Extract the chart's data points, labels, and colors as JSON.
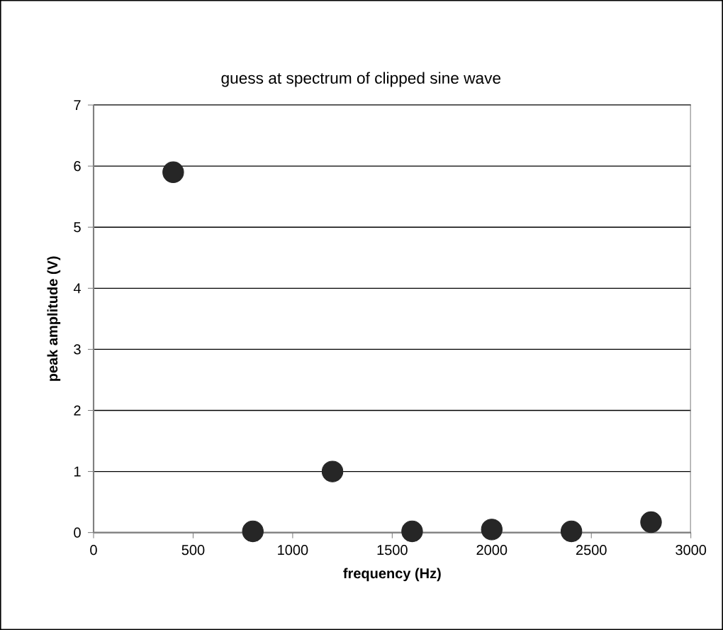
{
  "chart_data": {
    "type": "scatter",
    "title": "guess at spectrum of clipped sine wave",
    "xlabel": "frequency (Hz)",
    "ylabel": "peak amplitude (V)",
    "x": [
      400,
      800,
      1200,
      1600,
      2000,
      2400,
      2800
    ],
    "values": [
      5.9,
      0.02,
      1.0,
      0.02,
      0.05,
      0.02,
      0.17
    ],
    "color": "#262626",
    "marker": "circle",
    "grid": "y",
    "xlim": [
      0,
      3000
    ],
    "xticks": [
      0,
      500,
      1000,
      1500,
      2000,
      2500,
      3000
    ],
    "ylim": [
      0,
      7
    ],
    "yticks": [
      0,
      1,
      2,
      3,
      4,
      5,
      6,
      7
    ]
  }
}
